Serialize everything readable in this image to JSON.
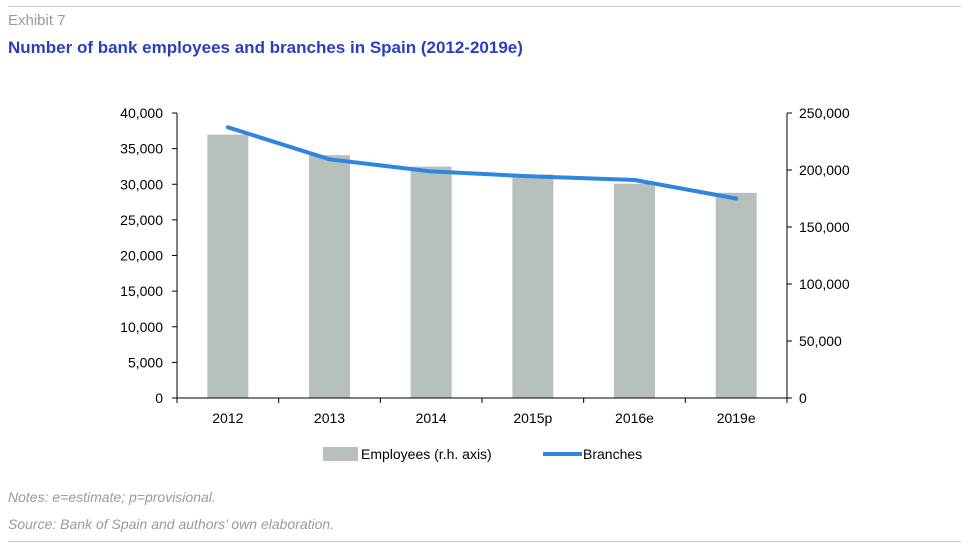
{
  "header": {
    "exhibit": "Exhibit 7",
    "title": "Number of bank employees and branches in Spain (2012-2019e)"
  },
  "footer": {
    "notes": "Notes: e=estimate; p=provisional.",
    "source": "Source: Bank of Spain and authors’ own elaboration."
  },
  "chart_data": {
    "type": "bar",
    "title": "Number of bank employees and branches in Spain (2012-2019e)",
    "categories": [
      "2012",
      "2013",
      "2014",
      "2015p",
      "2016e",
      "2019e"
    ],
    "series": [
      {
        "name": "Employees (r.h. axis)",
        "type": "bar",
        "axis": "right",
        "color": "#b8c0bc",
        "values": [
          231000,
          213000,
          203000,
          196000,
          188000,
          180000
        ]
      },
      {
        "name": "Branches",
        "type": "line",
        "axis": "left",
        "color": "#2e86de",
        "values": [
          38000,
          33500,
          31800,
          31100,
          30600,
          28000
        ]
      }
    ],
    "y_left": {
      "range": [
        0,
        40000
      ],
      "ticks": [
        "0",
        "5,000",
        "10,000",
        "15,000",
        "20,000",
        "25,000",
        "30,000",
        "35,000",
        "40,000"
      ]
    },
    "y_right": {
      "range": [
        0,
        250000
      ],
      "ticks": [
        "0",
        "50,000",
        "100,000",
        "150,000",
        "200,000",
        "250,000"
      ]
    },
    "grid": false,
    "legend_position": "bottom"
  }
}
